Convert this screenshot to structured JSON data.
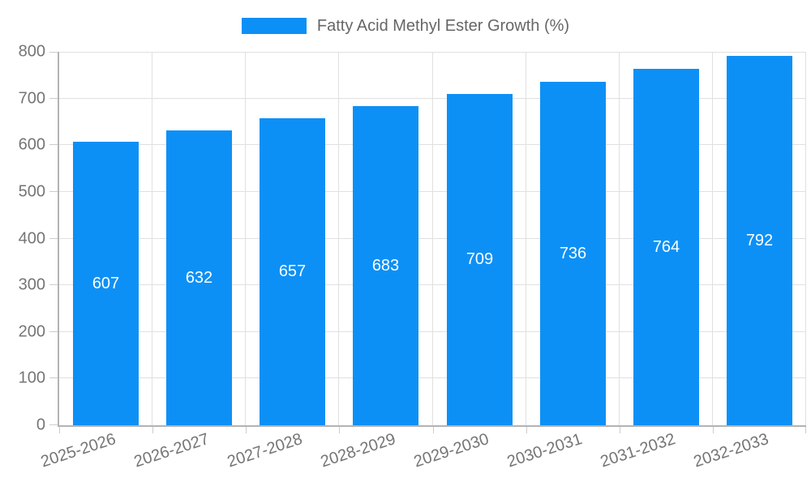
{
  "legend": {
    "label": "Fatty Acid Methyl Ester Growth (%)"
  },
  "chart_data": {
    "type": "bar",
    "title": "Fatty Acid Methyl Ester Growth (%)",
    "categories": [
      "2025-2026",
      "2026-2027",
      "2027-2028",
      "2028-2029",
      "2029-2030",
      "2030-2031",
      "2031-2032",
      "2032-2033"
    ],
    "values": [
      607,
      632,
      657,
      683,
      709,
      736,
      764,
      792
    ],
    "xlabel": "",
    "ylabel": "",
    "ylim": [
      0,
      800
    ],
    "ytick_step": 100,
    "yticks": [
      0,
      100,
      200,
      300,
      400,
      500,
      600,
      700,
      800
    ],
    "grid": true,
    "legend_position": "top",
    "value_labels": "inside-center"
  },
  "colors": {
    "bar": "#0d90f5",
    "grid": "#e0e0e0",
    "axis": "#b3b3b3",
    "tick": "#cccccc",
    "tick_text": "#757575",
    "legend_text": "#666666",
    "value_text": "#ffffff",
    "background": "#ffffff"
  }
}
